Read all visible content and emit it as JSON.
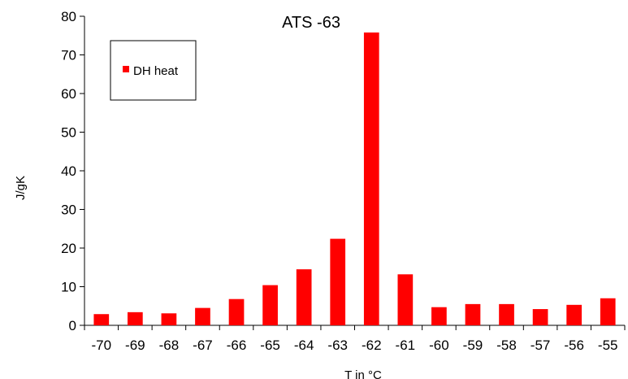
{
  "chart_data": {
    "type": "bar",
    "title": "ATS -63",
    "xlabel": "T in °C",
    "ylabel": "J/gK",
    "ylim": [
      0,
      80
    ],
    "yticks": [
      0,
      10,
      20,
      30,
      40,
      50,
      60,
      70,
      80
    ],
    "categories": [
      "-70",
      "-69",
      "-68",
      "-67",
      "-66",
      "-65",
      "-64",
      "-63",
      "-62",
      "-61",
      "-60",
      "-59",
      "-58",
      "-57",
      "-56",
      "-55"
    ],
    "series": [
      {
        "name": "DH heat",
        "color": "#ff0000",
        "values": [
          2.9,
          3.4,
          3.1,
          4.5,
          6.8,
          10.4,
          14.5,
          22.4,
          75.8,
          13.2,
          4.7,
          5.5,
          5.5,
          4.2,
          5.3,
          7.0
        ]
      }
    ],
    "legend_position": "top-left",
    "grid": false
  }
}
